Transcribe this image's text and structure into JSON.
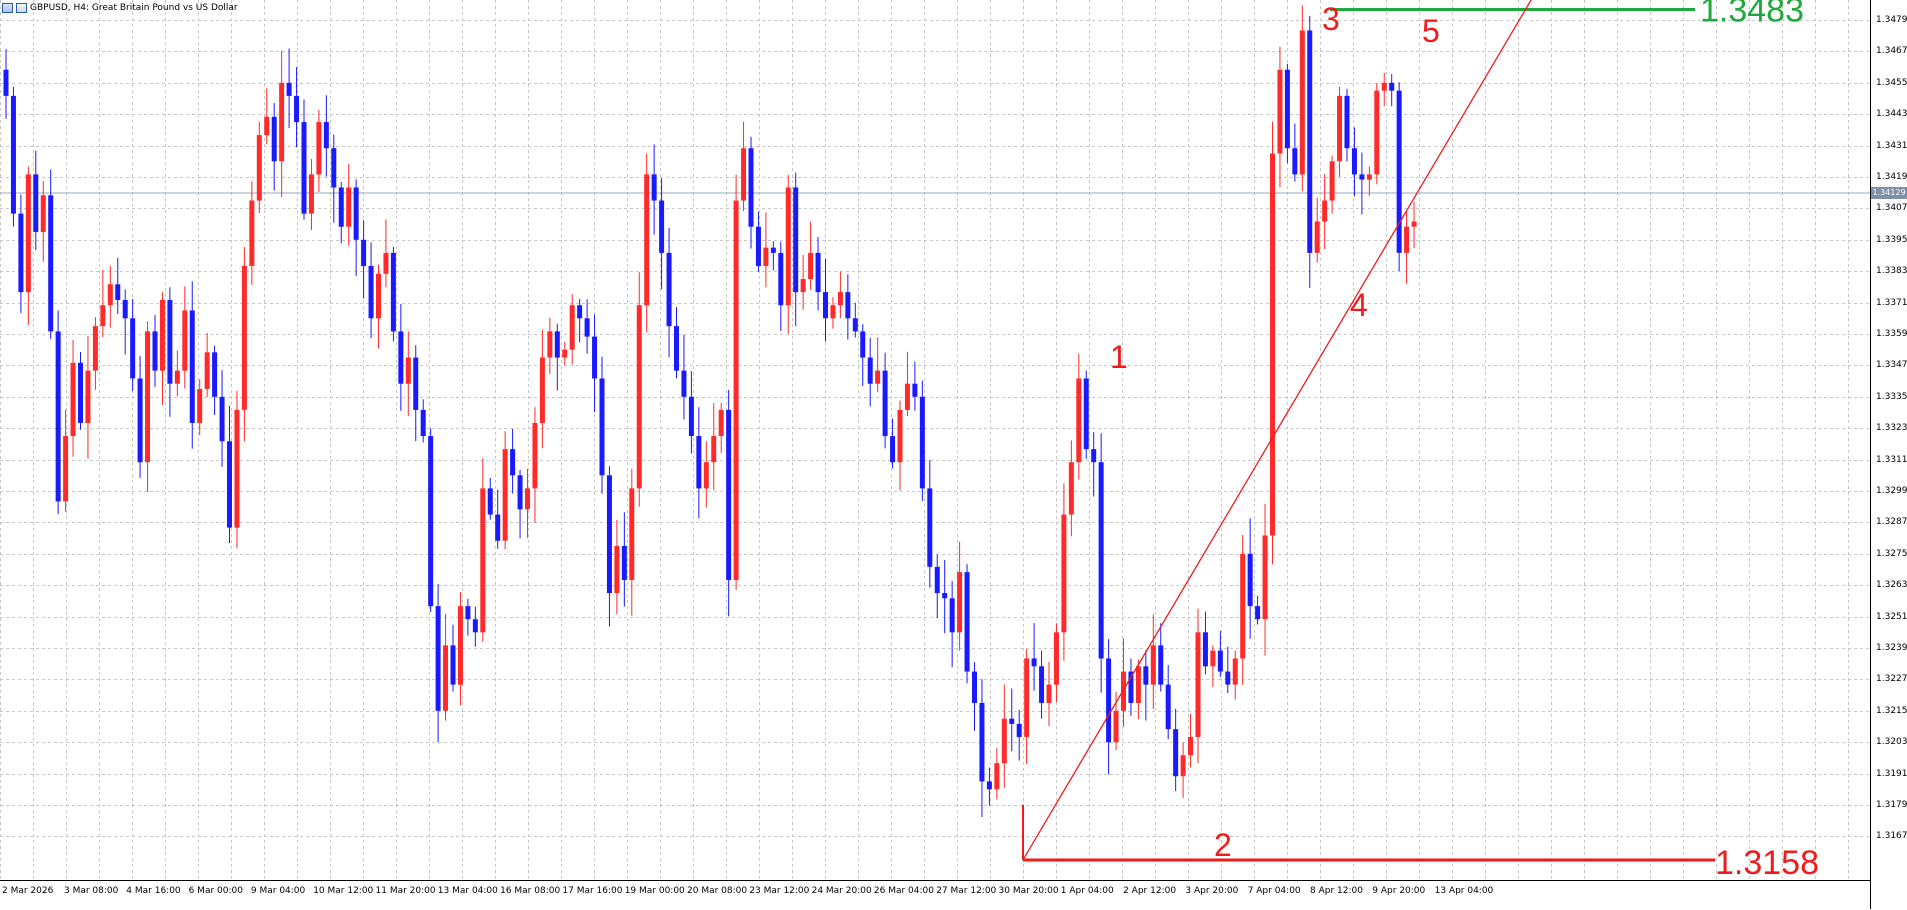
{
  "window": {
    "title": "GBPUSD, H4:  Great Britain Pound vs US Dollar"
  },
  "colors": {
    "bull": "#ff2a2a",
    "bear": "#1a1aff",
    "grid": "#c8c8c8",
    "bid_line": "#9aa8bb",
    "target_green": "#1fa83c",
    "target_red": "#ee1c1c",
    "wave_label": "#ee1c1c"
  },
  "price_axis": {
    "ticks": [
      "1.34790",
      "1.34670",
      "1.34550",
      "1.34430",
      "1.34310",
      "1.34190",
      "1.34070",
      "1.33950",
      "1.33830",
      "1.33710",
      "1.33590",
      "1.33470",
      "1.33350",
      "1.33230",
      "1.33110",
      "1.32990",
      "1.32870",
      "1.32750",
      "1.32630",
      "1.32510",
      "1.32390",
      "1.32270",
      "1.32150",
      "1.32030",
      "1.31910",
      "1.31790",
      "1.31670"
    ],
    "bid_label": "1.34129"
  },
  "time_axis": {
    "labels": [
      "2 Mar 2026",
      "3 Mar 08:00",
      "4 Mar 16:00",
      "6 Mar 00:00",
      "9 Mar 04:00",
      "10 Mar 12:00",
      "11 Mar 20:00",
      "13 Mar 04:00",
      "16 Mar 08:00",
      "17 Mar 16:00",
      "19 Mar 00:00",
      "20 Mar 08:00",
      "23 Mar 12:00",
      "24 Mar 20:00",
      "26 Mar 04:00",
      "27 Mar 12:00",
      "30 Mar 20:00",
      "1 Apr 04:00",
      "2 Apr 12:00",
      "3 Apr 20:00",
      "7 Apr 04:00",
      "8 Apr 12:00",
      "9 Apr 20:00",
      "13 Apr 04:00"
    ]
  },
  "annotations": {
    "target_high": "1.3483",
    "target_low": "1.3158",
    "waves": [
      "1",
      "2",
      "3",
      "4",
      "5"
    ]
  },
  "chart_data": {
    "type": "candlestick",
    "symbol": "GBPUSD",
    "timeframe": "H4",
    "ylim": [
      1.3158,
      1.3485
    ],
    "grid": true,
    "bid": 1.34129,
    "target_lines": [
      1.3483,
      1.3158
    ],
    "waves": [
      {
        "label": "1",
        "price": 1.3348
      },
      {
        "label": "2",
        "price": 1.3174
      },
      {
        "label": "3",
        "price": 1.3481
      },
      {
        "label": "4",
        "price": 1.3383
      },
      {
        "label": "5",
        "price": 1.3475
      }
    ],
    "closes": [
      1.345,
      1.3405,
      1.3375,
      1.342,
      1.3398,
      1.3412,
      1.336,
      1.3295,
      1.332,
      1.3348,
      1.3325,
      1.3345,
      1.3362,
      1.337,
      1.3378,
      1.3372,
      1.3365,
      1.3342,
      1.331,
      1.336,
      1.3345,
      1.3372,
      1.334,
      1.3345,
      1.3368,
      1.3325,
      1.3338,
      1.3352,
      1.3335,
      1.3318,
      1.3285,
      1.333,
      1.3385,
      1.341,
      1.3435,
      1.3442,
      1.3425,
      1.3455,
      1.345,
      1.344,
      1.3405,
      1.342,
      1.344,
      1.343,
      1.3415,
      1.34,
      1.3415,
      1.3395,
      1.3385,
      1.3365,
      1.3382,
      1.339,
      1.336,
      1.334,
      1.335,
      1.333,
      1.332,
      1.3255,
      1.3215,
      1.324,
      1.3225,
      1.3255,
      1.325,
      1.3245,
      1.33,
      1.329,
      1.328,
      1.3315,
      1.3305,
      1.3292,
      1.33,
      1.3325,
      1.335,
      1.336,
      1.335,
      1.3353,
      1.337,
      1.3365,
      1.3358,
      1.3342,
      1.3305,
      1.326,
      1.3278,
      1.3265,
      1.33,
      1.337,
      1.342,
      1.341,
      1.339,
      1.3362,
      1.3345,
      1.3335,
      1.332,
      1.33,
      1.331,
      1.332,
      1.333,
      1.3265,
      1.341,
      1.343,
      1.34,
      1.3385,
      1.3392,
      1.339,
      1.337,
      1.3415,
      1.3375,
      1.338,
      1.339,
      1.3375,
      1.3365,
      1.337,
      1.3375,
      1.3365,
      1.336,
      1.335,
      1.334,
      1.3345,
      1.332,
      1.331,
      1.333,
      1.334,
      1.3335,
      1.33,
      1.327,
      1.326,
      1.3258,
      1.3245,
      1.3268,
      1.323,
      1.3218,
      1.3188,
      1.3185,
      1.3195,
      1.3212,
      1.321,
      1.3205,
      1.3235,
      1.3232,
      1.3218,
      1.3225,
      1.3245,
      1.329,
      1.331,
      1.3342,
      1.3315,
      1.331,
      1.3235,
      1.3203,
      1.3215,
      1.323,
      1.3218,
      1.3232,
      1.3225,
      1.324,
      1.3225,
      1.3208,
      1.319,
      1.3198,
      1.3205,
      1.3245,
      1.3232,
      1.3238,
      1.323,
      1.3225,
      1.3235,
      1.3275,
      1.3255,
      1.325,
      1.3282,
      1.3428,
      1.346,
      1.343,
      1.342,
      1.3475,
      1.339,
      1.3402,
      1.341,
      1.3425,
      1.345,
      1.343,
      1.342,
      1.3418,
      1.342,
      1.3452,
      1.3455,
      1.3452,
      1.339,
      1.34,
      1.3402
    ]
  }
}
